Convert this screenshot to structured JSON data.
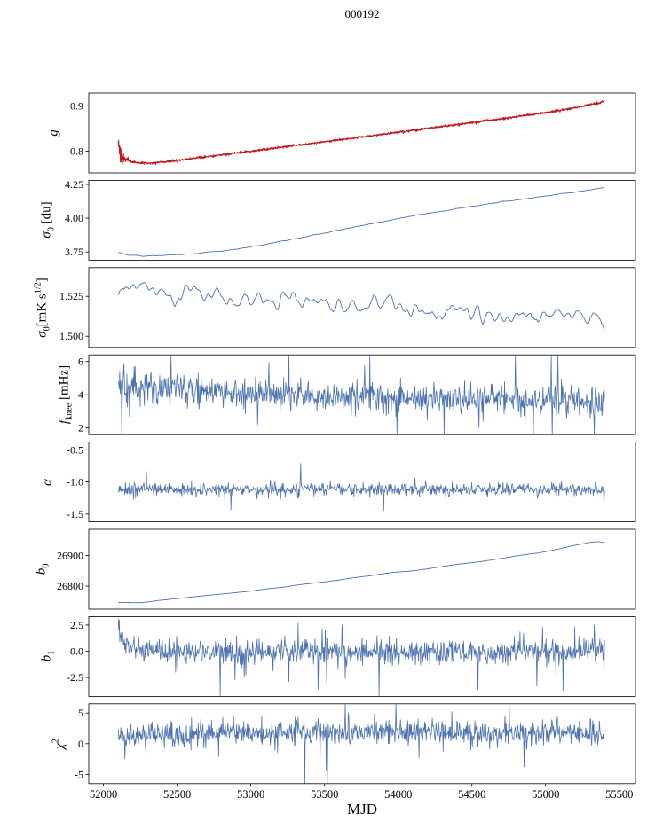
{
  "title": "000192",
  "xlabel": "MJD",
  "colors": {
    "line": "#4c72b0",
    "overlay": "#cc1111",
    "axis": "#000000",
    "background": "#ffffff"
  },
  "x_axis": {
    "lim": [
      51900,
      55610
    ],
    "ticks": [
      {
        "v": 52000,
        "label": "52000"
      },
      {
        "v": 52500,
        "label": "52500"
      },
      {
        "v": 53000,
        "label": "53000"
      },
      {
        "v": 53500,
        "label": "53500"
      },
      {
        "v": 54000,
        "label": "54000"
      },
      {
        "v": 54500,
        "label": "54500"
      },
      {
        "v": 55000,
        "label": "55000"
      },
      {
        "v": 55500,
        "label": "55500"
      }
    ]
  },
  "chart_data": [
    {
      "type": "line",
      "id": "g",
      "ylabel_segments": [
        {
          "t": "g",
          "k": "i"
        }
      ],
      "ylim": [
        0.752,
        0.928
      ],
      "yticks": [
        {
          "v": 0.8,
          "label": "0.8"
        },
        {
          "v": 0.9,
          "label": "0.9"
        }
      ],
      "series": [
        {
          "name": "g-model",
          "color": "#4c72b0",
          "width": 0.9,
          "n": 900,
          "noise": 0.0006,
          "noise0": 0.012,
          "tau": 0.006,
          "trend": [
            [
              52100,
              0.801
            ],
            [
              52130,
              0.7855
            ],
            [
              52180,
              0.7765
            ],
            [
              52250,
              0.7737
            ],
            [
              52330,
              0.774
            ],
            [
              52450,
              0.7775
            ],
            [
              52600,
              0.7836
            ],
            [
              52800,
              0.7918
            ],
            [
              53000,
              0.7998
            ],
            [
              53200,
              0.8083
            ],
            [
              53400,
              0.8168
            ],
            [
              53600,
              0.8248
            ],
            [
              53800,
              0.833
            ],
            [
              54000,
              0.8418
            ],
            [
              54200,
              0.85
            ],
            [
              54400,
              0.8588
            ],
            [
              54600,
              0.8668
            ],
            [
              54800,
              0.8758
            ],
            [
              55000,
              0.8848
            ],
            [
              55150,
              0.8928
            ],
            [
              55250,
              0.8988
            ],
            [
              55350,
              0.9058
            ],
            [
              55400,
              0.91
            ]
          ]
        },
        {
          "name": "g-data",
          "color": "#cc1111",
          "width": 1.0,
          "n": 1400,
          "noise": 0.0014,
          "noise0": 0.022,
          "tau": 0.008,
          "trend": [
            [
              52100,
              0.801
            ],
            [
              52130,
              0.7855
            ],
            [
              52180,
              0.7765
            ],
            [
              52250,
              0.7737
            ],
            [
              52330,
              0.774
            ],
            [
              52450,
              0.7775
            ],
            [
              52600,
              0.7836
            ],
            [
              52800,
              0.7918
            ],
            [
              53000,
              0.7998
            ],
            [
              53200,
              0.8083
            ],
            [
              53400,
              0.8168
            ],
            [
              53600,
              0.8248
            ],
            [
              53800,
              0.833
            ],
            [
              54000,
              0.8418
            ],
            [
              54200,
              0.85
            ],
            [
              54400,
              0.8588
            ],
            [
              54600,
              0.8668
            ],
            [
              54800,
              0.8758
            ],
            [
              55000,
              0.8848
            ],
            [
              55150,
              0.8928
            ],
            [
              55250,
              0.8988
            ],
            [
              55350,
              0.9058
            ],
            [
              55400,
              0.91
            ]
          ]
        }
      ]
    },
    {
      "type": "line",
      "id": "sigma0-du",
      "ylabel_segments": [
        {
          "t": "σ",
          "k": "i"
        },
        {
          "t": "0",
          "k": "sub"
        },
        {
          "t": " [du]",
          "k": "n"
        }
      ],
      "ylim": [
        3.69,
        4.28
      ],
      "yticks": [
        {
          "v": 3.75,
          "label": "3.75"
        },
        {
          "v": 4.0,
          "label": "4.00"
        },
        {
          "v": 4.25,
          "label": "4.25"
        }
      ],
      "series": [
        {
          "name": "sigma0-du",
          "color": "#4c72b0",
          "width": 0.9,
          "n": 800,
          "noise": 0.004,
          "smoothw": 9,
          "smoothp": 1,
          "trend": [
            [
              52100,
              3.745
            ],
            [
              52170,
              3.728
            ],
            [
              52260,
              3.7205
            ],
            [
              52400,
              3.7235
            ],
            [
              52600,
              3.737
            ],
            [
              52800,
              3.757
            ],
            [
              53000,
              3.788
            ],
            [
              53250,
              3.838
            ],
            [
              53500,
              3.89
            ],
            [
              53750,
              3.945
            ],
            [
              54000,
              3.998
            ],
            [
              54250,
              4.045
            ],
            [
              54500,
              4.088
            ],
            [
              54750,
              4.128
            ],
            [
              55000,
              4.163
            ],
            [
              55200,
              4.192
            ],
            [
              55400,
              4.228
            ]
          ]
        }
      ]
    },
    {
      "type": "line",
      "id": "sigma0-mk",
      "ylabel_segments": [
        {
          "t": "σ",
          "k": "i"
        },
        {
          "t": "0",
          "k": "sub"
        },
        {
          "t": "[mK s",
          "k": "n"
        },
        {
          "t": "1/2",
          "k": "sup"
        },
        {
          "t": "]",
          "k": "n"
        }
      ],
      "ylim": [
        1.493,
        1.543
      ],
      "yticks": [
        {
          "v": 1.5,
          "label": "1.500"
        },
        {
          "v": 1.525,
          "label": "1.525"
        }
      ],
      "series": [
        {
          "name": "sigma0-mk",
          "color": "#4c72b0",
          "width": 0.9,
          "n": 800,
          "noise": 0.009,
          "smoothw": 7,
          "smoothp": 2,
          "trend": [
            [
              52100,
              1.5315
            ],
            [
              52200,
              1.5345
            ],
            [
              52350,
              1.529
            ],
            [
              52500,
              1.5265
            ],
            [
              52700,
              1.528
            ],
            [
              52900,
              1.5235
            ],
            [
              53100,
              1.5225
            ],
            [
              53300,
              1.524
            ],
            [
              53500,
              1.52
            ],
            [
              53700,
              1.5185
            ],
            [
              53900,
              1.5205
            ],
            [
              54100,
              1.517
            ],
            [
              54300,
              1.5145
            ],
            [
              54500,
              1.5155
            ],
            [
              54700,
              1.5125
            ],
            [
              54900,
              1.5135
            ],
            [
              55100,
              1.511
            ],
            [
              55250,
              1.5125
            ],
            [
              55350,
              1.508
            ],
            [
              55400,
              1.5035
            ]
          ]
        }
      ]
    },
    {
      "type": "line",
      "id": "fknee",
      "ylabel_segments": [
        {
          "t": "f",
          "k": "i"
        },
        {
          "t": "knee",
          "k": "sub"
        },
        {
          "t": " [mHz]",
          "k": "n"
        }
      ],
      "ylim": [
        1.6,
        6.4
      ],
      "yticks": [
        {
          "v": 2,
          "label": "2"
        },
        {
          "v": 4,
          "label": "4"
        },
        {
          "v": 6,
          "label": "6"
        }
      ],
      "series": [
        {
          "name": "fknee",
          "color": "#4c72b0",
          "width": 0.8,
          "n": 950,
          "noise": 0.42,
          "noise0": 0.25,
          "tau": 0.05,
          "heavy": 0.05,
          "trend": [
            [
              52100,
              4.45
            ],
            [
              52300,
              4.45
            ],
            [
              52600,
              4.33
            ],
            [
              52900,
              4.18
            ],
            [
              53200,
              4.02
            ],
            [
              53600,
              3.9
            ],
            [
              54000,
              3.82
            ],
            [
              54400,
              3.72
            ],
            [
              54800,
              3.68
            ],
            [
              55200,
              3.63
            ],
            [
              55400,
              3.58
            ]
          ]
        }
      ]
    },
    {
      "type": "line",
      "id": "alpha",
      "ylabel_segments": [
        {
          "t": "α",
          "k": "i"
        }
      ],
      "ylim": [
        -1.62,
        -0.38
      ],
      "yticks": [
        {
          "v": -1.5,
          "label": "-1.5"
        },
        {
          "v": -1.0,
          "label": "-1.0"
        },
        {
          "v": -0.5,
          "label": "-0.5"
        }
      ],
      "series": [
        {
          "name": "alpha",
          "color": "#4c72b0",
          "width": 0.8,
          "n": 950,
          "noise": 0.048,
          "heavy": 0.02,
          "trend": [
            [
              52100,
              -1.115
            ],
            [
              53500,
              -1.118
            ],
            [
              55400,
              -1.12
            ]
          ]
        }
      ]
    },
    {
      "type": "line",
      "id": "b0",
      "ylabel_segments": [
        {
          "t": "b",
          "k": "i"
        },
        {
          "t": "0",
          "k": "sub"
        }
      ],
      "ylim": [
        26725,
        26985
      ],
      "yticks": [
        {
          "v": 26800,
          "label": "26800"
        },
        {
          "v": 26900,
          "label": "26900"
        }
      ],
      "series": [
        {
          "name": "b0",
          "color": "#4c72b0",
          "width": 0.9,
          "n": 700,
          "noise": 7,
          "smoothw": 31,
          "smoothp": 2,
          "trend": [
            [
              52100,
              26747
            ],
            [
              52250,
              26749
            ],
            [
              52400,
              26754
            ],
            [
              52550,
              26762
            ],
            [
              52700,
              26770
            ],
            [
              52850,
              26776
            ],
            [
              53000,
              26784
            ],
            [
              53150,
              26793
            ],
            [
              53300,
              26803
            ],
            [
              53450,
              26812
            ],
            [
              53600,
              26821
            ],
            [
              53750,
              26830
            ],
            [
              53900,
              26839
            ],
            [
              54050,
              26848
            ],
            [
              54200,
              26856
            ],
            [
              54350,
              26866
            ],
            [
              54500,
              26877
            ],
            [
              54650,
              26888
            ],
            [
              54800,
              26898
            ],
            [
              54950,
              26908
            ],
            [
              55100,
              26920
            ],
            [
              55200,
              26932
            ],
            [
              55300,
              26944
            ],
            [
              55350,
              26946
            ],
            [
              55400,
              26943
            ]
          ]
        }
      ]
    },
    {
      "type": "line",
      "id": "b1",
      "ylabel_segments": [
        {
          "t": "b",
          "k": "i"
        },
        {
          "t": "1",
          "k": "sub"
        }
      ],
      "ylim": [
        -4.3,
        3.3
      ],
      "yticks": [
        {
          "v": -2.5,
          "label": "-2.5"
        },
        {
          "v": 0.0,
          "label": "0.0"
        },
        {
          "v": 2.5,
          "label": "2.5"
        }
      ],
      "series": [
        {
          "name": "b1",
          "color": "#4c72b0",
          "width": 0.8,
          "n": 950,
          "noise": 0.6,
          "heavy": 0.05,
          "spikes": [
            [
              55120,
              -3.75
            ],
            [
              55200,
              2.3
            ],
            [
              55330,
              2.5
            ]
          ],
          "trend": [
            [
              52100,
              2.55
            ],
            [
              52125,
              1.5
            ],
            [
              52160,
              0.6
            ],
            [
              52220,
              0.15
            ],
            [
              52350,
              -0.05
            ],
            [
              54800,
              -0.05
            ],
            [
              55400,
              0.0
            ]
          ]
        }
      ]
    },
    {
      "type": "line",
      "id": "chi2",
      "ylabel_segments": [
        {
          "t": "χ",
          "k": "i"
        },
        {
          "t": "2",
          "k": "sup"
        }
      ],
      "ylim": [
        -6.5,
        6.5
      ],
      "yticks": [
        {
          "v": -5,
          "label": "-5"
        },
        {
          "v": 0,
          "label": "0"
        },
        {
          "v": 5,
          "label": "5"
        }
      ],
      "series": [
        {
          "name": "chi2",
          "color": "#4c72b0",
          "width": 0.8,
          "n": 950,
          "noise": 1.05,
          "heavy": 0.03,
          "trend": [
            [
              52100,
              1.55
            ],
            [
              52800,
              1.62
            ],
            [
              53500,
              1.7
            ],
            [
              54200,
              1.75
            ],
            [
              55400,
              1.8
            ]
          ]
        }
      ]
    }
  ]
}
